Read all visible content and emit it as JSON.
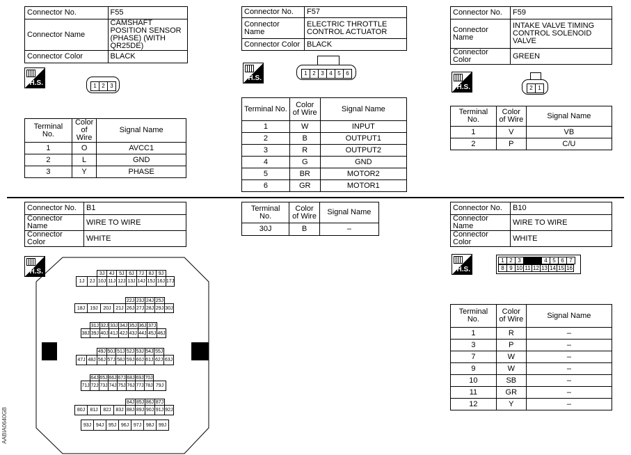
{
  "labels": {
    "connector_no": "Connector No.",
    "connector_name": "Connector Name",
    "connector_color": "Connector Color",
    "terminal_no": "Terminal No.",
    "color_of_wire": "Color of Wire",
    "signal_name": "Signal Name",
    "hs": "H.S."
  },
  "f55": {
    "no": "F55",
    "name": "CAMSHAFT POSITION SENSOR (PHASE) (WITH QR25DE)",
    "color": "BLACK",
    "pins": [
      "1",
      "2",
      "3"
    ],
    "rows": [
      [
        "1",
        "O",
        "AVCC1"
      ],
      [
        "2",
        "L",
        "GND"
      ],
      [
        "3",
        "Y",
        "PHASE"
      ]
    ]
  },
  "f57": {
    "no": "F57",
    "name": "ELECTRIC THROTTLE CONTROL ACTUATOR",
    "color": "BLACK",
    "pins": [
      "1",
      "2",
      "3",
      "4",
      "5",
      "6"
    ],
    "rows": [
      [
        "1",
        "W",
        "INPUT"
      ],
      [
        "2",
        "B",
        "OUTPUT1"
      ],
      [
        "3",
        "R",
        "OUTPUT2"
      ],
      [
        "4",
        "G",
        "GND"
      ],
      [
        "5",
        "BR",
        "MOTOR2"
      ],
      [
        "6",
        "GR",
        "MOTOR1"
      ]
    ]
  },
  "f59": {
    "no": "F59",
    "name": "INTAKE VALVE TIMING CONTROL SOLENOID VALVE",
    "color": "GREEN",
    "pins": [
      "2",
      "1"
    ],
    "rows": [
      [
        "1",
        "V",
        "VB"
      ],
      [
        "2",
        "P",
        "C/U"
      ]
    ]
  },
  "b1": {
    "no": "B1",
    "name": "WIRE TO WIRE",
    "color": "WHITE",
    "rows": [
      [
        "30J",
        "B",
        "–"
      ]
    ]
  },
  "b10": {
    "no": "B10",
    "name": "WIRE TO WIRE",
    "color": "WHITE",
    "pins_top": [
      "1",
      "2",
      "3",
      "",
      "4",
      "5",
      "6",
      "7"
    ],
    "pins_bottom": [
      "8",
      "9",
      "10",
      "11",
      "12",
      "13",
      "14",
      "15",
      "16"
    ],
    "rows": [
      [
        "1",
        "R",
        "–"
      ],
      [
        "3",
        "P",
        "–"
      ],
      [
        "7",
        "W",
        "–"
      ],
      [
        "9",
        "W",
        "–"
      ],
      [
        "10",
        "SB",
        "–"
      ],
      [
        "11",
        "GR",
        "–"
      ],
      [
        "12",
        "Y",
        "–"
      ]
    ]
  },
  "figure_id": "AABIA0640GB"
}
